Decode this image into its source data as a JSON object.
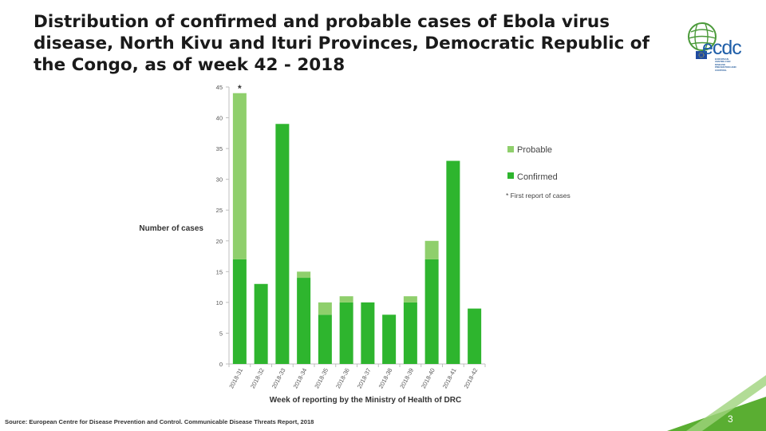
{
  "slide": {
    "title": "Distribution of confirmed and probable cases of Ebola virus disease, North Kivu and Ituri Provinces, Democratic Republic of the Congo, as of week 42 - 2018",
    "source": "Source: European Centre for Disease Prevention and Control. Communicable Disease Threats Report, 2018",
    "page_number": "3"
  },
  "logo": {
    "text": "ecdc",
    "subtext": "EUROPEAN CENTRE FOR DISEASE PREVENTION AND CONTROL"
  },
  "colors": {
    "confirmed": "#2eb52e",
    "probable": "#8fcf6c",
    "axis": "#bfbfbf",
    "accent_green": "#5aae32"
  },
  "chart_data": {
    "type": "bar",
    "stacked": true,
    "categories": [
      "2018-31",
      "2018-32",
      "2018-33",
      "2018-34",
      "2018-35",
      "2018-36",
      "2018-37",
      "2018-38",
      "2018-39",
      "2018-40",
      "2018-41",
      "2018-42"
    ],
    "series": [
      {
        "name": "Confirmed",
        "values": [
          17,
          13,
          39,
          14,
          8,
          10,
          10,
          8,
          10,
          17,
          33,
          9
        ]
      },
      {
        "name": "Probable",
        "values": [
          27,
          0,
          0,
          1,
          2,
          1,
          0,
          0,
          1,
          3,
          0,
          0
        ]
      }
    ],
    "annotation": {
      "text": "*",
      "category": "2018-31"
    },
    "legend_note": "* First report of cases",
    "xlabel": "Week of reporting by the Ministry of Health of DRC",
    "ylabel": "Number of cases",
    "ylim": [
      0,
      45
    ],
    "yticks": [
      0,
      5,
      10,
      15,
      20,
      25,
      30,
      35,
      40,
      45
    ],
    "grid": false,
    "legend_position": "right"
  }
}
